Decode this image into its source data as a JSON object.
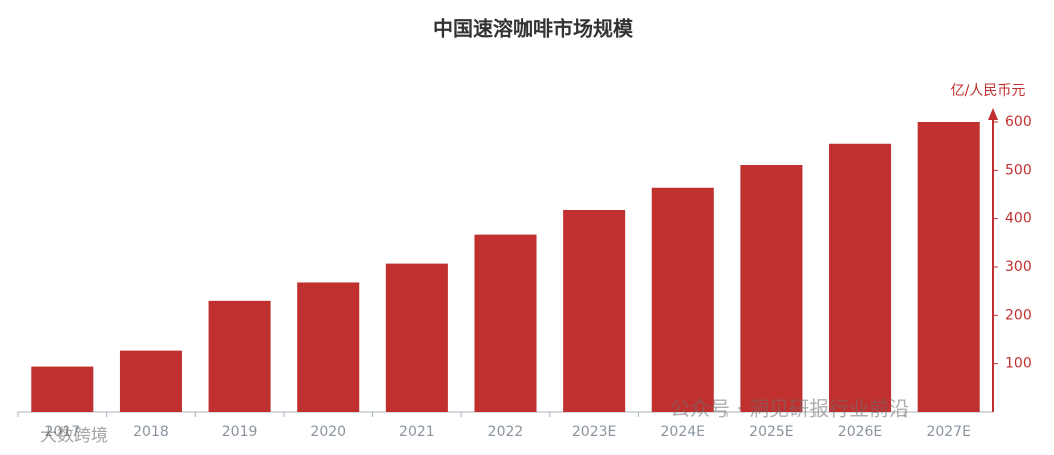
{
  "chart_data": {
    "type": "bar",
    "title": "中国速溶咖啡市场规模",
    "y_label": "亿/人民币元",
    "categories": [
      "2017",
      "2018",
      "2019",
      "2020",
      "2021",
      "2022",
      "2023E",
      "2024E",
      "2025E",
      "2026E",
      "2027E"
    ],
    "values": [
      94,
      127,
      230,
      268,
      307,
      367,
      418,
      464,
      511,
      555,
      600
    ],
    "color": "#c0302f",
    "ylim": [
      0,
      600
    ],
    "yticks": [
      100,
      200,
      300,
      400,
      500,
      600
    ],
    "y_axis_side": "right",
    "watermarks": [
      "大数跨境",
      "公众号 · 洞见研报行业前沿"
    ]
  }
}
